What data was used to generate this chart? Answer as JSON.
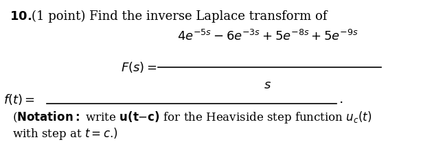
{
  "background_color": "#ffffff",
  "font_size": 12,
  "fig_width": 6.13,
  "fig_height": 2.23,
  "dpi": 100
}
